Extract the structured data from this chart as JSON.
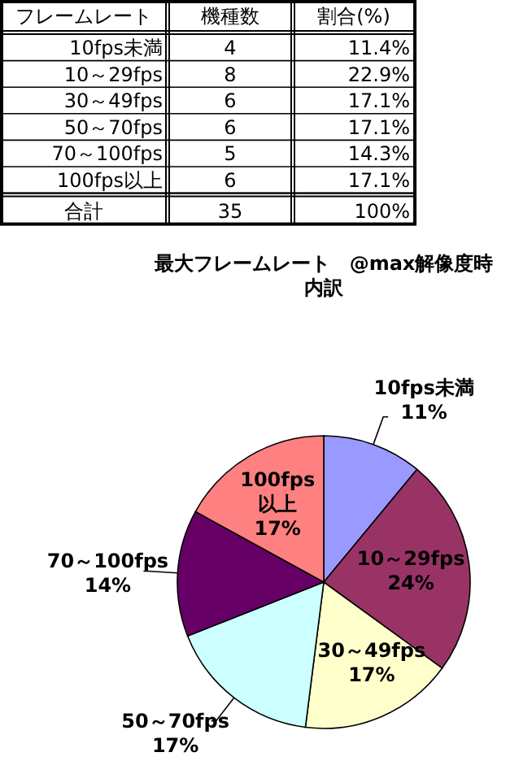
{
  "chart_data": [
    {
      "type": "other",
      "xlabel": "フレームレート",
      "categories": [
        "10fps未満",
        "10～29fps",
        "30～49fps",
        "50～70fps",
        "70～100fps",
        "100fps以上"
      ],
      "data_labels": true,
      "series": [
        {
          "name": "機種数",
          "values": [
            4,
            8,
            6,
            6,
            5,
            6
          ]
        },
        {
          "name": "割合(%)",
          "values": [
            11.4,
            22.9,
            17.1,
            17.1,
            14.3,
            17.1
          ],
          "value_labels": [
            "11.4%",
            "22.9%",
            "17.1%",
            "17.1%",
            "14.3%",
            "17.1%"
          ]
        }
      ],
      "annotations": [
        "合計"
      ],
      "totals": [
        "35",
        "100%"
      ]
    },
    {
      "type": "pie",
      "title": "最大フレームレート　@max解像度時",
      "subtitle": "内訳",
      "categories": [
        "10fps未満",
        "10～29fps",
        "30～49fps",
        "50～70fps",
        "70～100fps",
        "100fps以上"
      ],
      "values": [
        11,
        24,
        17,
        17,
        14,
        17
      ],
      "value_labels": [
        "11%",
        "24%",
        "17%",
        "17%",
        "14%",
        "17%"
      ],
      "colors": [
        "#9999ff",
        "#993366",
        "#ffffcc",
        "#ccffff",
        "#660066",
        "#ff8080"
      ],
      "data_labels": true
    }
  ]
}
